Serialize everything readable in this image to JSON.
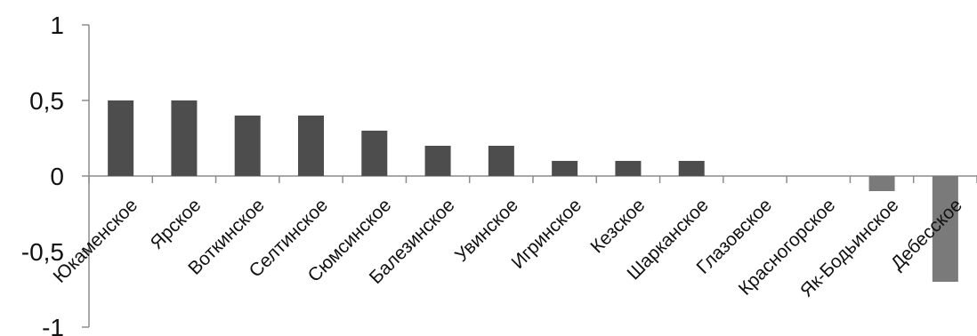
{
  "chart_data": {
    "type": "bar",
    "categories": [
      "Юкаменское",
      "Ярское",
      "Воткинское",
      "Селтинское",
      "Сюмсинское",
      "Балезинское",
      "Увинское",
      "Игринское",
      "Кезское",
      "Шарканское",
      "Глазовское",
      "Красногорское",
      "Як-Бодьинское",
      "Дебесское"
    ],
    "values": [
      0.5,
      0.5,
      0.4,
      0.4,
      0.3,
      0.2,
      0.2,
      0.1,
      0.1,
      0.1,
      0,
      0,
      -0.1,
      -0.7
    ],
    "ylim": [
      -1,
      1
    ],
    "yticks": [
      1,
      0.5,
      0,
      -0.5,
      -1
    ],
    "ytick_labels": [
      "1",
      "0,5",
      "0",
      "-0,5",
      "-1"
    ],
    "grid": false,
    "title": "",
    "xlabel": "",
    "ylabel": ""
  },
  "colors": {
    "positive_bar": "#4d4d4d",
    "negative_bar": "#7a7a7a",
    "axis": "#8c8c8c"
  }
}
